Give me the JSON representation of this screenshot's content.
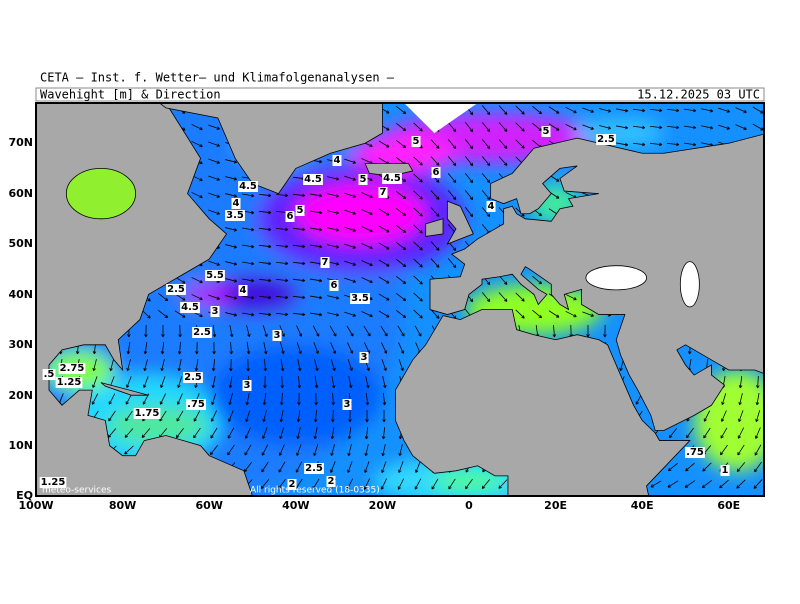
{
  "header": {
    "title": "CETA — Inst. f. Wetter— und Klimafolgenanalysen —",
    "subtitle": "Wavehight [m] & Direction",
    "timestamp": "15.12.2025 03 UTC"
  },
  "map": {
    "lat_labels": [
      "70N",
      "60N",
      "50N",
      "40N",
      "30N",
      "20N",
      "10N",
      "EQ"
    ],
    "lon_labels": [
      "100W",
      "80W",
      "60W",
      "40W",
      "20W",
      "0",
      "20E",
      "40E",
      "60E"
    ],
    "contour_labels": [
      "5",
      "5",
      "2.5",
      "4",
      "6",
      "5",
      "4.5",
      "4.5",
      "4.5",
      "7",
      "4",
      "3.5",
      "5",
      "6",
      "4",
      "7",
      "5.5",
      "4",
      "2.5",
      "6",
      "3.5",
      "4.5",
      "3",
      "2.5",
      "3",
      "3",
      "2.75",
      ".5",
      "1.25",
      "2.5",
      "3",
      "3",
      ".75",
      "1.75",
      "2.5",
      "2",
      "2",
      "1.25",
      ".75",
      "1"
    ]
  },
  "footer": {
    "credit": "meteo-services",
    "copyright": "All rights reserved (18-0335)"
  }
}
